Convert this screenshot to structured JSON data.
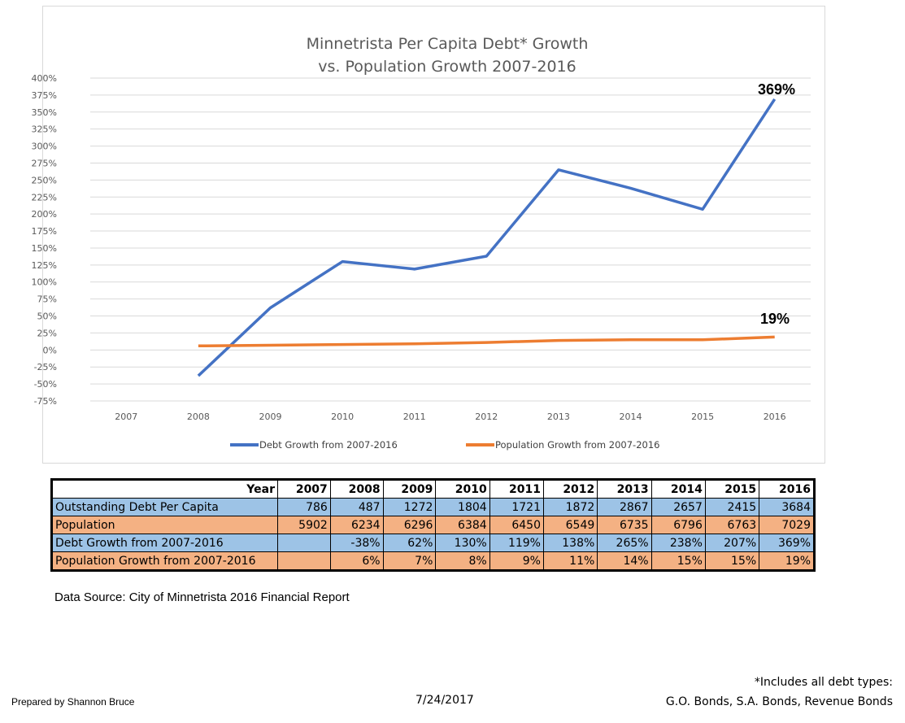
{
  "chart_data": {
    "type": "line",
    "title_lines": [
      "Minnetrista Per Capita Debt* Growth",
      "vs. Population Growth 2007-2016"
    ],
    "categories": [
      "2007",
      "2008",
      "2009",
      "2010",
      "2011",
      "2012",
      "2013",
      "2014",
      "2015",
      "2016"
    ],
    "y_ticks": [
      "400%",
      "375%",
      "350%",
      "325%",
      "300%",
      "275%",
      "250%",
      "225%",
      "200%",
      "175%",
      "150%",
      "125%",
      "100%",
      "75%",
      "50%",
      "25%",
      "0%",
      "-25%",
      "-50%",
      "-75%"
    ],
    "ylim": [
      -75,
      400
    ],
    "y_unit": "%",
    "grid": true,
    "legend_placement": "bottom",
    "series": [
      {
        "name": "Debt Growth from 2007-2016",
        "color": "#4472c4",
        "values": [
          null,
          -38,
          62,
          130,
          119,
          138,
          265,
          238,
          207,
          369
        ],
        "end_label": "369%"
      },
      {
        "name": "Population Growth from 2007-2016",
        "color": "#ed7d31",
        "values": [
          null,
          6,
          7,
          8,
          9,
          11,
          14,
          15,
          15,
          19
        ],
        "end_label": "19%"
      }
    ]
  },
  "table": {
    "header_label": "Year",
    "years": [
      "2007",
      "2008",
      "2009",
      "2010",
      "2011",
      "2012",
      "2013",
      "2014",
      "2015",
      "2016"
    ],
    "rows": [
      {
        "label": "Outstanding Debt Per Capita",
        "style": "blue",
        "values": [
          "786",
          "487",
          "1272",
          "1804",
          "1721",
          "1872",
          "2867",
          "2657",
          "2415",
          "3684"
        ]
      },
      {
        "label": "Population",
        "style": "orange",
        "values": [
          "5902",
          "6234",
          "6296",
          "6384",
          "6450",
          "6549",
          "6735",
          "6796",
          "6763",
          "7029"
        ]
      },
      {
        "label": "Debt Growth from 2007-2016",
        "style": "blue",
        "values": [
          "",
          "-38%",
          "62%",
          "130%",
          "119%",
          "138%",
          "265%",
          "238%",
          "207%",
          "369%"
        ]
      },
      {
        "label": "Population Growth from 2007-2016",
        "style": "orange",
        "values": [
          "",
          "6%",
          "7%",
          "8%",
          "9%",
          "11%",
          "14%",
          "15%",
          "15%",
          "19%"
        ]
      }
    ]
  },
  "footer": {
    "source": "Data Source: City of Minnetrista 2016 Financial Report",
    "prepared_by": "Prepared by Shannon Bruce",
    "date": "7/24/2017",
    "note_line1": "*Includes all debt types:",
    "note_line2": "G.O. Bonds, S.A. Bonds, Revenue Bonds"
  }
}
